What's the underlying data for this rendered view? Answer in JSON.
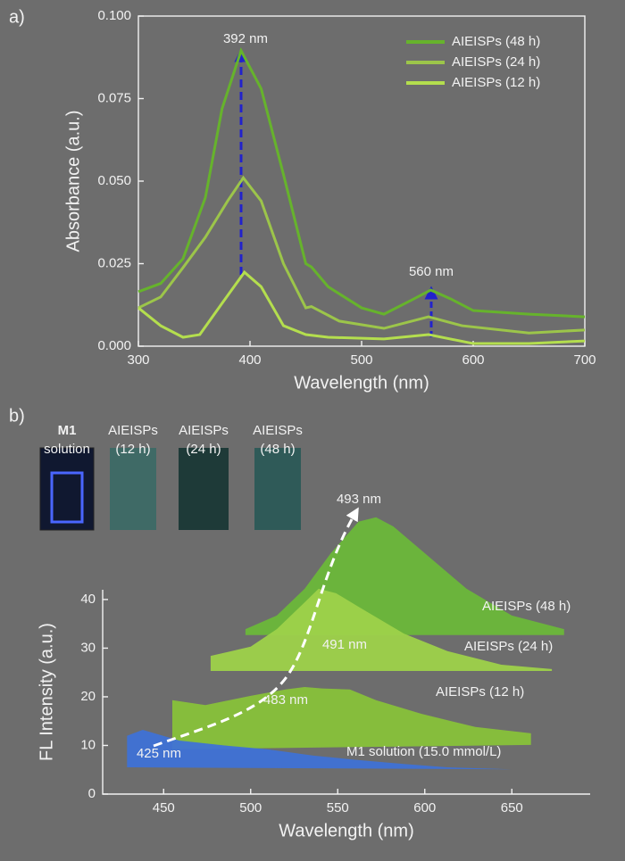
{
  "chart_data": [
    {
      "type": "line",
      "panel": "a)",
      "xlabel": "Wavelength (nm)",
      "ylabel": "Absorbance (a.u.)",
      "xlim": [
        300,
        700
      ],
      "xticks": [
        300,
        400,
        500,
        600,
        700
      ],
      "ylim": [
        0,
        0.1
      ],
      "yticks": [
        {
          "value": 0,
          "label": "0.000"
        },
        {
          "value": 0.025,
          "label": "0.025"
        },
        {
          "value": 0.05,
          "label": "0.050"
        },
        {
          "value": 0.075,
          "label": "0.075"
        },
        {
          "value": 0.1,
          "label": "0.100"
        }
      ],
      "annotations": [
        "392 nm",
        "560 nm"
      ],
      "series": [
        {
          "name": "AIEISPs (48 h)",
          "color": "#66b32c",
          "x": [
            300,
            320,
            340,
            360,
            375,
            392,
            410,
            430,
            450,
            455,
            470,
            500,
            520,
            545,
            562,
            580,
            600,
            650,
            700
          ],
          "values": [
            0.0165,
            0.019,
            0.0265,
            0.045,
            0.072,
            0.0895,
            0.078,
            0.052,
            0.025,
            0.024,
            0.018,
            0.0116,
            0.0097,
            0.014,
            0.017,
            0.0143,
            0.0108,
            0.0097,
            0.0089
          ]
        },
        {
          "name": "AIEISPs (24 h)",
          "color": "#9cc54a",
          "x": [
            300,
            320,
            340,
            360,
            380,
            394,
            410,
            430,
            450,
            455,
            480,
            520,
            560,
            590,
            650,
            700
          ],
          "values": [
            0.0116,
            0.0149,
            0.0238,
            0.033,
            0.044,
            0.051,
            0.044,
            0.025,
            0.0116,
            0.012,
            0.0076,
            0.0054,
            0.0089,
            0.0062,
            0.004,
            0.0049
          ]
        },
        {
          "name": "AIEISPs (12 h)",
          "color": "#b4de4e",
          "x": [
            300,
            320,
            340,
            355,
            375,
            395,
            410,
            430,
            450,
            470,
            520,
            560,
            600,
            650,
            700
          ],
          "values": [
            0.0116,
            0.0062,
            0.0027,
            0.0035,
            0.013,
            0.0224,
            0.018,
            0.0062,
            0.0035,
            0.0027,
            0.0022,
            0.0035,
            0.0008,
            0.0008,
            0.0016
          ]
        }
      ]
    },
    {
      "type": "waterfall",
      "panel": "b)",
      "xlabel": "Wavelength (nm)",
      "ylabel": "FL Intensity (a.u.)",
      "xlim": [
        415,
        695
      ],
      "xticks": [
        450,
        500,
        550,
        600,
        650
      ],
      "ylim": [
        0,
        42
      ],
      "yticks": [
        0,
        10,
        20,
        30,
        40
      ],
      "annotations": [
        "425 nm",
        "483 nm",
        "491 nm",
        "493 nm"
      ],
      "insets": [
        {
          "lines": [
            "M1",
            "solution"
          ]
        },
        {
          "lines": [
            "AIEISPs",
            "(12 h)"
          ]
        },
        {
          "lines": [
            "AIEISPs",
            "(24 h)"
          ]
        },
        {
          "lines": [
            "AIEISPs",
            "(48 h)"
          ]
        }
      ],
      "series": [
        {
          "name": "AIEISPs (48 h)",
          "color": "#6cb83a",
          "x": [
            497,
            497,
            515,
            531,
            546,
            562,
            572,
            582,
            603,
            624,
            650,
            680,
            680
          ],
          "values": [
            32.7,
            33.9,
            36.7,
            42.2,
            49.5,
            56,
            56.9,
            55,
            48.6,
            42.2,
            36.7,
            33.9,
            32.7
          ]
        },
        {
          "name": "AIEISPs (24 h)",
          "color": "#9ed24a",
          "x": [
            477,
            477,
            500,
            515,
            531,
            539,
            549,
            562,
            588,
            613,
            644,
            673,
            673
          ],
          "values": [
            25.3,
            28.4,
            30.3,
            33.9,
            39.4,
            42.2,
            41.3,
            38.5,
            33,
            29.4,
            26.6,
            25.7,
            25.3
          ]
        },
        {
          "name": "AIEISPs (12 h)",
          "color": "#88c23a",
          "x": [
            455,
            455,
            474,
            500,
            520,
            531,
            541,
            557,
            572,
            598,
            629,
            661,
            661
          ],
          "values": [
            9.2,
            19.3,
            18.3,
            20.2,
            21.5,
            22,
            21.7,
            21.5,
            19.3,
            16.5,
            13.8,
            12.5,
            10.1
          ]
        },
        {
          "name": "M1 solution (15.0 mmol/L)",
          "color": "#3f72d6",
          "x": [
            429,
            429,
            438,
            459,
            485,
            510,
            536,
            562,
            588,
            613,
            650
          ],
          "values": [
            5.5,
            12,
            13.2,
            11,
            10,
            9.2,
            7.9,
            7,
            6.2,
            5.5,
            5.1
          ]
        }
      ]
    }
  ]
}
